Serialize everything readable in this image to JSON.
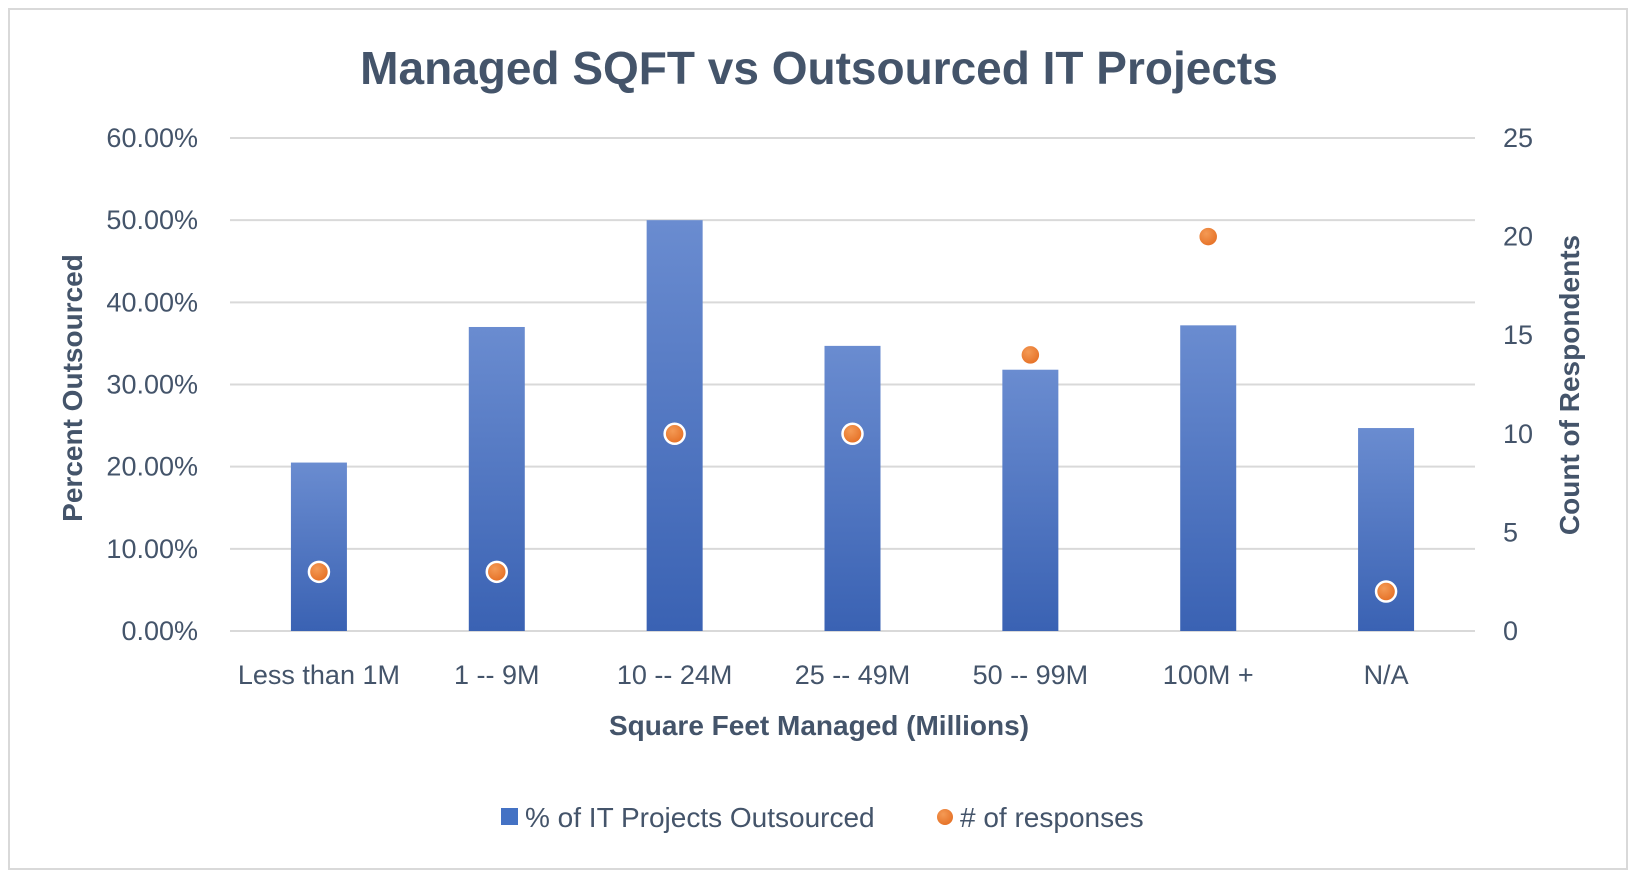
{
  "chart_data": {
    "type": "bar",
    "title": "Managed SQFT vs Outsourced IT Projects",
    "xlabel": "Square Feet Managed (Millions)",
    "ylabel": "Percent Outsourced",
    "y2label": "Count of Respondents",
    "categories": [
      "Less than 1M",
      "1 -- 9M",
      "10 -- 24M",
      "25 -- 49M",
      "50 -- 99M",
      "100M +",
      "N/A"
    ],
    "ylim": [
      0,
      0.6
    ],
    "yticks": [
      "0.00%",
      "10.00%",
      "20.00%",
      "30.00%",
      "40.00%",
      "50.00%",
      "60.00%"
    ],
    "y2lim": [
      0,
      25
    ],
    "y2ticks": [
      "0",
      "5",
      "10",
      "15",
      "20",
      "25"
    ],
    "grid": true,
    "legend_position": "bottom",
    "series": [
      {
        "name": "% of IT Projects Outsourced",
        "type": "bar",
        "axis": "left",
        "color": "#4472c4",
        "values": [
          0.205,
          0.37,
          0.5,
          0.347,
          0.318,
          0.372,
          0.247
        ]
      },
      {
        "name": "# of responses",
        "type": "scatter",
        "axis": "right",
        "color": "#ed7d31",
        "values": [
          3,
          3,
          10,
          10,
          14,
          20,
          2
        ]
      }
    ]
  }
}
